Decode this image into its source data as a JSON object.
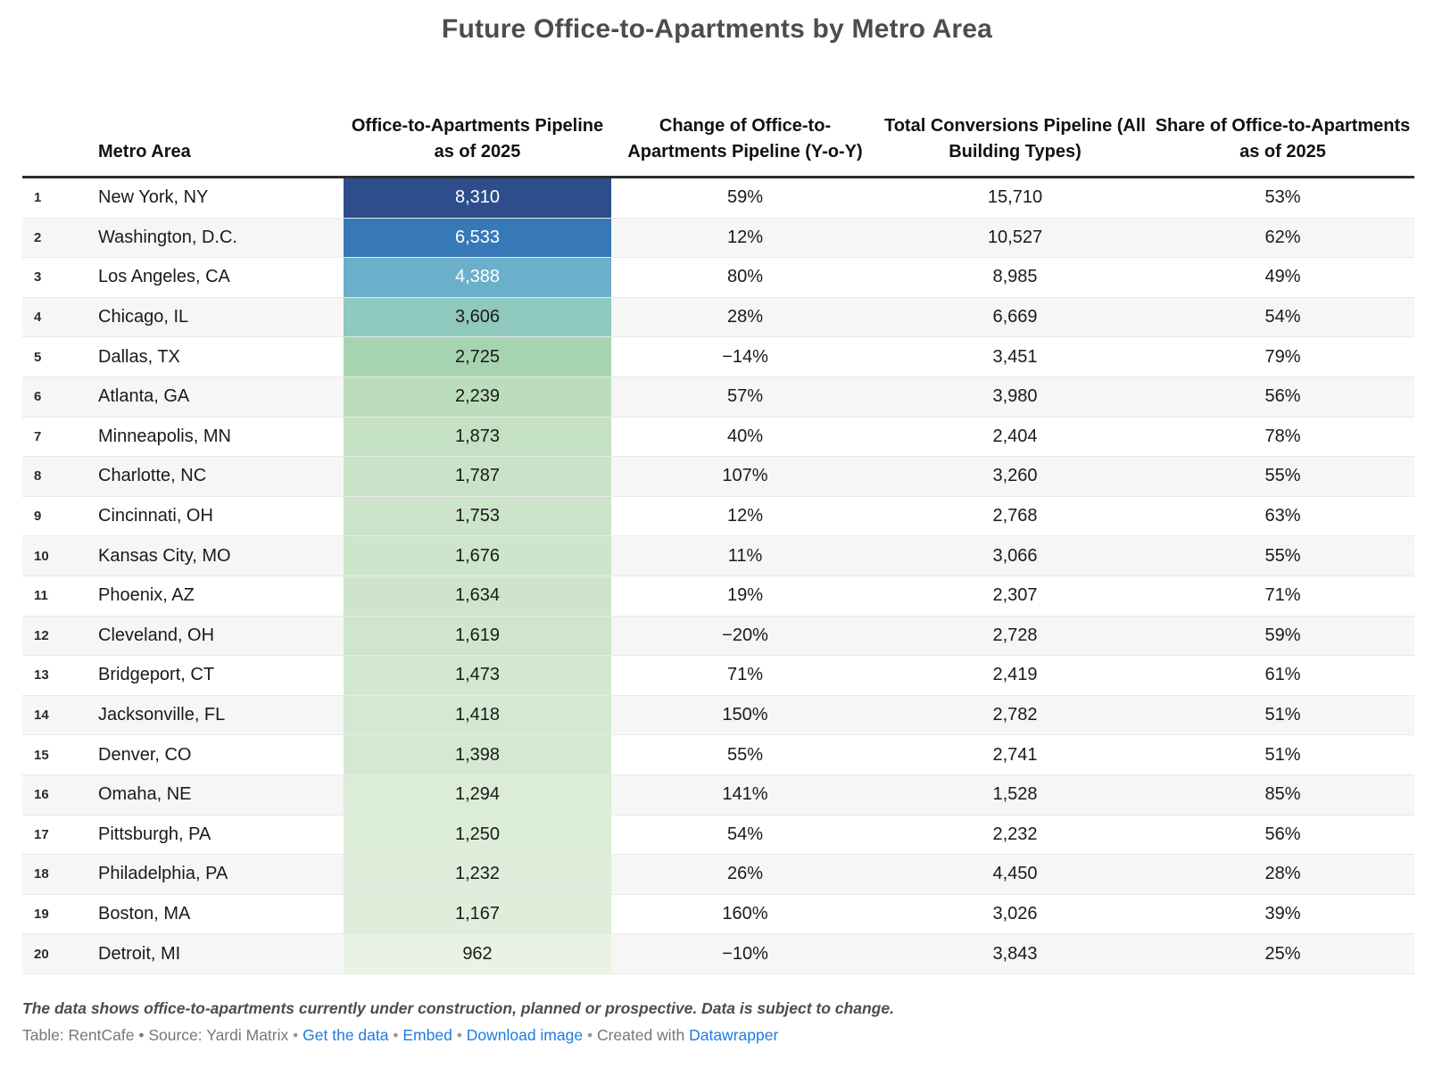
{
  "title": "Future Office-to-Apartments by Metro Area",
  "columns": {
    "rank": "",
    "metro": "Metro Area",
    "pipeline": "Office-to-Apartments Pipeline as of 2025",
    "change": "Change of Office-to-Apartments Pipeline (Y-o-Y)",
    "total": "Total Conversions Pipeline (All Building Types)",
    "share": "Share of Office-to-Apartments as of 2025"
  },
  "table": {
    "rows": [
      {
        "rank": "1",
        "metro": "New York, NY",
        "pipeline": "8,310",
        "change": "59%",
        "total": "15,710",
        "share": "53%",
        "color": "#2d4d8b",
        "text_color": "#ffffff"
      },
      {
        "rank": "2",
        "metro": "Washington, D.C.",
        "pipeline": "6,533",
        "change": "12%",
        "total": "10,527",
        "share": "62%",
        "color": "#3779b7",
        "text_color": "#ffffff"
      },
      {
        "rank": "3",
        "metro": "Los Angeles, CA",
        "pipeline": "4,388",
        "change": "80%",
        "total": "8,985",
        "share": "49%",
        "color": "#6cafca",
        "text_color": "#ffffff"
      },
      {
        "rank": "4",
        "metro": "Chicago, IL",
        "pipeline": "3,606",
        "change": "28%",
        "total": "6,669",
        "share": "54%",
        "color": "#8fc8bd",
        "text_color": "#1a1a1a"
      },
      {
        "rank": "5",
        "metro": "Dallas, TX",
        "pipeline": "2,725",
        "change": "−14%",
        "total": "3,451",
        "share": "79%",
        "color": "#a6d4b0",
        "text_color": "#1a1a1a"
      },
      {
        "rank": "6",
        "metro": "Atlanta, GA",
        "pipeline": "2,239",
        "change": "57%",
        "total": "3,980",
        "share": "56%",
        "color": "#bcddbc",
        "text_color": "#1a1a1a"
      },
      {
        "rank": "7",
        "metro": "Minneapolis, MN",
        "pipeline": "1,873",
        "change": "40%",
        "total": "2,404",
        "share": "78%",
        "color": "#c4e1c4",
        "text_color": "#1a1a1a"
      },
      {
        "rank": "8",
        "metro": "Charlotte, NC",
        "pipeline": "1,787",
        "change": "107%",
        "total": "3,260",
        "share": "55%",
        "color": "#c9e3c8",
        "text_color": "#1a1a1a"
      },
      {
        "rank": "9",
        "metro": "Cincinnati, OH",
        "pipeline": "1,753",
        "change": "12%",
        "total": "2,768",
        "share": "63%",
        "color": "#cbe4ca",
        "text_color": "#1a1a1a"
      },
      {
        "rank": "10",
        "metro": "Kansas City, MO",
        "pipeline": "1,676",
        "change": "11%",
        "total": "3,066",
        "share": "55%",
        "color": "#cde5cb",
        "text_color": "#1a1a1a"
      },
      {
        "rank": "11",
        "metro": "Phoenix, AZ",
        "pipeline": "1,634",
        "change": "19%",
        "total": "2,307",
        "share": "71%",
        "color": "#cee5cc",
        "text_color": "#1a1a1a"
      },
      {
        "rank": "12",
        "metro": "Cleveland, OH",
        "pipeline": "1,619",
        "change": "−20%",
        "total": "2,728",
        "share": "59%",
        "color": "#cfe6cd",
        "text_color": "#1a1a1a"
      },
      {
        "rank": "13",
        "metro": "Bridgeport, CT",
        "pipeline": "1,473",
        "change": "71%",
        "total": "2,419",
        "share": "61%",
        "color": "#d2e8d0",
        "text_color": "#1a1a1a"
      },
      {
        "rank": "14",
        "metro": "Jacksonville, FL",
        "pipeline": "1,418",
        "change": "150%",
        "total": "2,782",
        "share": "51%",
        "color": "#d4e9d1",
        "text_color": "#1a1a1a"
      },
      {
        "rank": "15",
        "metro": "Denver, CO",
        "pipeline": "1,398",
        "change": "55%",
        "total": "2,741",
        "share": "51%",
        "color": "#d5e9d2",
        "text_color": "#1a1a1a"
      },
      {
        "rank": "16",
        "metro": "Omaha, NE",
        "pipeline": "1,294",
        "change": "141%",
        "total": "1,528",
        "share": "85%",
        "color": "#dbecd7",
        "text_color": "#1a1a1a"
      },
      {
        "rank": "17",
        "metro": "Pittsburgh, PA",
        "pipeline": "1,250",
        "change": "54%",
        "total": "2,232",
        "share": "56%",
        "color": "#dcedd8",
        "text_color": "#1a1a1a"
      },
      {
        "rank": "18",
        "metro": "Philadelphia, PA",
        "pipeline": "1,232",
        "change": "26%",
        "total": "4,450",
        "share": "28%",
        "color": "#ddedd9",
        "text_color": "#1a1a1a"
      },
      {
        "rank": "19",
        "metro": "Boston, MA",
        "pipeline": "1,167",
        "change": "160%",
        "total": "3,026",
        "share": "39%",
        "color": "#dfeeda",
        "text_color": "#1a1a1a"
      },
      {
        "rank": "20",
        "metro": "Detroit, MI",
        "pipeline": "962",
        "change": "−10%",
        "total": "3,843",
        "share": "25%",
        "color": "#eaf3e3",
        "text_color": "#1a1a1a"
      }
    ]
  },
  "chart_data": {
    "type": "table",
    "title": "Future Office-to-Apartments by Metro Area",
    "columns": [
      "Rank",
      "Metro Area",
      "Office-to-Apartments Pipeline as of 2025",
      "Change of Office-to-Apartments Pipeline (Y-o-Y) %",
      "Total Conversions Pipeline (All Building Types)",
      "Share of Office-to-Apartments as of 2025 %"
    ],
    "heatmap_column": "Office-to-Apartments Pipeline as of 2025",
    "heatmap_range": [
      962,
      8310
    ],
    "rows": [
      [
        1,
        "New York, NY",
        8310,
        59,
        15710,
        53
      ],
      [
        2,
        "Washington, D.C.",
        6533,
        12,
        10527,
        62
      ],
      [
        3,
        "Los Angeles, CA",
        4388,
        80,
        8985,
        49
      ],
      [
        4,
        "Chicago, IL",
        3606,
        28,
        6669,
        54
      ],
      [
        5,
        "Dallas, TX",
        2725,
        -14,
        3451,
        79
      ],
      [
        6,
        "Atlanta, GA",
        2239,
        57,
        3980,
        56
      ],
      [
        7,
        "Minneapolis, MN",
        1873,
        40,
        2404,
        78
      ],
      [
        8,
        "Charlotte, NC",
        1787,
        107,
        3260,
        55
      ],
      [
        9,
        "Cincinnati, OH",
        1753,
        12,
        2768,
        63
      ],
      [
        10,
        "Kansas City, MO",
        1676,
        11,
        3066,
        55
      ],
      [
        11,
        "Phoenix, AZ",
        1634,
        19,
        2307,
        71
      ],
      [
        12,
        "Cleveland, OH",
        1619,
        -20,
        2728,
        59
      ],
      [
        13,
        "Bridgeport, CT",
        1473,
        71,
        2419,
        61
      ],
      [
        14,
        "Jacksonville, FL",
        1418,
        150,
        2782,
        51
      ],
      [
        15,
        "Denver, CO",
        1398,
        55,
        2741,
        51
      ],
      [
        16,
        "Omaha, NE",
        1294,
        141,
        1528,
        85
      ],
      [
        17,
        "Pittsburgh, PA",
        1250,
        54,
        2232,
        56
      ],
      [
        18,
        "Philadelphia, PA",
        1232,
        26,
        4450,
        28
      ],
      [
        19,
        "Boston, MA",
        1167,
        160,
        3026,
        39
      ],
      [
        20,
        "Detroit, MI",
        962,
        -10,
        3843,
        25
      ]
    ]
  },
  "footer": {
    "note": "The data shows office-to-apartments currently under construction, planned or prospective. Data is subject to change.",
    "attribution_prefix": "Table: RentCafe • Source: Yardi Matrix",
    "separator": "•",
    "link_get_data": "Get the data",
    "link_embed": "Embed",
    "link_download": "Download image",
    "created_with": "Created with",
    "link_datawrapper": "Datawrapper"
  },
  "colors": {
    "link_blue": "#1d7de0",
    "header_rule": "#2e2e2e",
    "row_stripe": "#f6f6f6",
    "title_gray": "#4d4d4d"
  }
}
